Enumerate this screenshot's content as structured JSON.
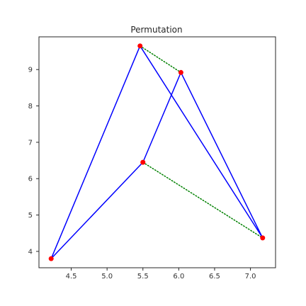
{
  "chart_data": {
    "type": "line",
    "title": "Permutation",
    "xlabel": "",
    "ylabel": "",
    "xlim": [
      4.05,
      7.35
    ],
    "ylim": [
      3.55,
      9.9
    ],
    "grid": false,
    "x_ticks": [
      "4.5",
      "5.0",
      "5.5",
      "6.0",
      "6.5",
      "7.0"
    ],
    "y_ticks": [
      "4",
      "5",
      "6",
      "7",
      "8",
      "9"
    ],
    "points": [
      {
        "x": 4.22,
        "y": 3.8
      },
      {
        "x": 5.46,
        "y": 9.65
      },
      {
        "x": 6.03,
        "y": 8.92
      },
      {
        "x": 5.5,
        "y": 6.45
      },
      {
        "x": 7.17,
        "y": 4.37
      }
    ],
    "series": [
      {
        "style": "solid",
        "color": "#0000ff",
        "path": [
          {
            "x": 4.22,
            "y": 3.8
          },
          {
            "x": 5.46,
            "y": 9.65
          },
          {
            "x": 7.17,
            "y": 4.37
          },
          {
            "x": 6.03,
            "y": 8.92
          },
          {
            "x": 5.5,
            "y": 6.45
          },
          {
            "x": 4.22,
            "y": 3.8
          }
        ]
      },
      {
        "style": "dotted",
        "color": "#008000",
        "segments": [
          [
            {
              "x": 5.46,
              "y": 9.65
            },
            {
              "x": 6.03,
              "y": 8.92
            }
          ],
          [
            {
              "x": 5.5,
              "y": 6.45
            },
            {
              "x": 7.17,
              "y": 4.37
            }
          ]
        ]
      }
    ],
    "marker_color": "#ff0000"
  }
}
